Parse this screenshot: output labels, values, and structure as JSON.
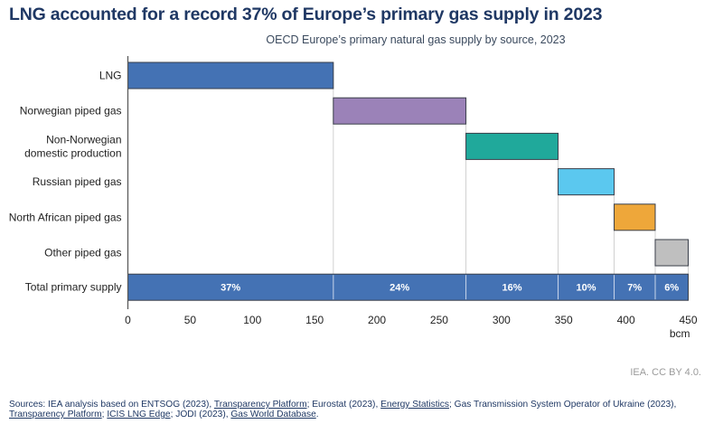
{
  "title": "LNG accounted for a record 37% of Europe’s primary gas supply in 2023",
  "credit": "IEA. CC BY 4.0.",
  "sources": {
    "parts": [
      {
        "text": "Sources: IEA analysis based on ENTSOG (2023), ",
        "link": false
      },
      {
        "text": "Transparency Platform",
        "link": true
      },
      {
        "text": "; Eurostat (2023), ",
        "link": false
      },
      {
        "text": "Energy Statistics",
        "link": true
      },
      {
        "text": "; Gas Transmission System Operator of Ukraine (2023), ",
        "link": false
      },
      {
        "text": "Transparency Platform",
        "link": true
      },
      {
        "text": "; ",
        "link": false
      },
      {
        "text": "ICIS LNG Edge",
        "link": true
      },
      {
        "text": "; JODI (2023), ",
        "link": false
      },
      {
        "text": "Gas World Database",
        "link": true
      },
      {
        "text": ".",
        "link": false
      }
    ]
  },
  "chart_data": {
    "type": "bar",
    "subtype": "waterfall",
    "title": "LNG accounted for a record 37% of Europe’s primary gas supply in 2023",
    "subtitle": "OECD Europe’s primary natural gas supply by source, 2023",
    "xlabel": "bcm",
    "ylabel": "",
    "xlim": [
      0,
      450
    ],
    "xticks": [
      0,
      50,
      100,
      150,
      200,
      250,
      300,
      350,
      400,
      450
    ],
    "grid": false,
    "legend": "none",
    "categories": [
      "LNG",
      "Norwegian piped gas",
      "Non-Norwegian domestic production",
      "Russian piped gas",
      "North African piped gas",
      "Other piped gas",
      "Total primary supply"
    ],
    "category_lines": [
      [
        "LNG"
      ],
      [
        "Norwegian piped gas"
      ],
      [
        "Non-Norwegian",
        "domestic production"
      ],
      [
        "Russian piped gas"
      ],
      [
        "North African piped gas"
      ],
      [
        "Other piped gas"
      ],
      [
        "Total primary supply"
      ]
    ],
    "series": [
      {
        "name": "LNG",
        "value": 165,
        "color": "#4472b4"
      },
      {
        "name": "Norwegian piped gas",
        "value": 106.5,
        "color": "#9b82b8"
      },
      {
        "name": "Non-Norwegian domestic production",
        "value": 74,
        "color": "#20a99b"
      },
      {
        "name": "Russian piped gas",
        "value": 45,
        "color": "#5bc8ef"
      },
      {
        "name": "North African piped gas",
        "value": 33,
        "color": "#eea73a"
      },
      {
        "name": "Other piped gas",
        "value": 26.5,
        "color": "#bfbfbf"
      }
    ],
    "total": {
      "name": "Total primary supply",
      "value": 450,
      "color": "#4472b4"
    },
    "share_labels": [
      "37%",
      "24%",
      "16%",
      "10%",
      "7%",
      "6%"
    ]
  }
}
